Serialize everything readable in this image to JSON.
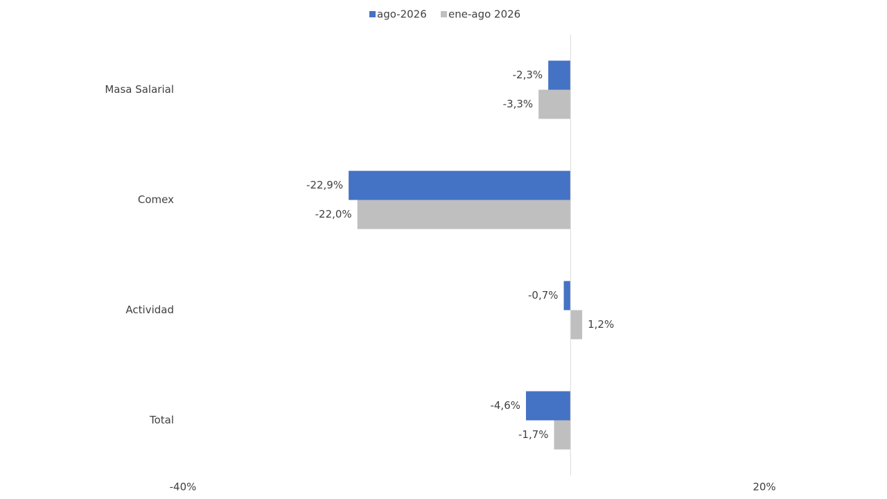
{
  "chart_data": {
    "type": "barh",
    "categories": [
      "Masa Salarial",
      "Comex",
      "Actividad",
      "Total"
    ],
    "series": [
      {
        "name": "ago-2026",
        "color": "#4472c4",
        "values": [
          -2.3,
          -22.9,
          -0.7,
          -4.6
        ],
        "value_labels": [
          "-2,3%",
          "-22,9%",
          "-0,7%",
          "-4,6%"
        ]
      },
      {
        "name": "ene-ago 2026",
        "color": "#bfbfbf",
        "values": [
          -3.3,
          -22.0,
          1.2,
          -1.7
        ],
        "value_labels": [
          "-3,3%",
          "-22,0%",
          "1,2%",
          "-1,7%"
        ]
      }
    ],
    "xlim": [
      -40,
      20
    ],
    "xticks": [
      {
        "value": -40,
        "label": "-40%"
      },
      {
        "value": 20,
        "label": "20%"
      }
    ],
    "legend": "top"
  }
}
